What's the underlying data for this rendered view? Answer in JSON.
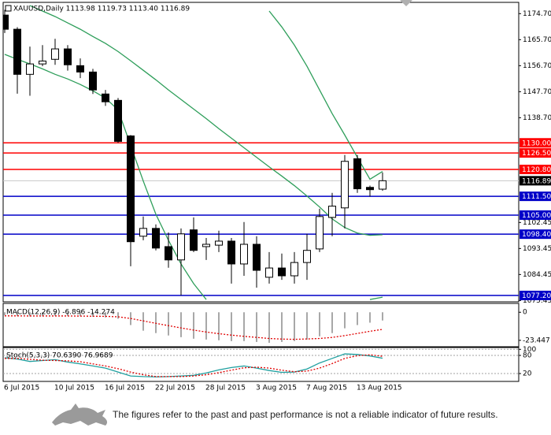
{
  "chart_data": [
    {
      "type": "candlestick",
      "title": "XAUUSD,Daily  1113.98 1119.73 1113.40 1116.89",
      "categories": [
        "6 Jul 2015",
        null,
        null,
        null,
        "10 Jul 2015",
        null,
        null,
        null,
        "16 Jul 2015",
        null,
        null,
        null,
        "22 Jul 2015",
        null,
        null,
        null,
        "28 Jul 2015",
        null,
        null,
        null,
        "3 Aug 2015",
        null,
        null,
        null,
        "7 Aug 2015",
        null,
        null,
        null,
        "13 Aug 2015",
        null,
        null
      ],
      "open": [
        1174.2,
        1169.3,
        1153.7,
        1157.3,
        1158.9,
        1162.5,
        1156.7,
        1154.5,
        1146.9,
        1144.7,
        1132.4,
        1097.7,
        1100.4,
        1094.1,
        1089.5,
        1099.9,
        1094.1,
        1094.6,
        1096.0,
        1088.1,
        1094.9,
        1083.5,
        1086.7,
        1084.0,
        1088.6,
        1093.3,
        1104.2,
        1107.5,
        1124.5,
        1114.6,
        1113.98
      ],
      "high": [
        1176.0,
        1170.0,
        1163.3,
        1163.8,
        1166.0,
        1163.8,
        1159.2,
        1155.6,
        1148.3,
        1145.5,
        1132.7,
        1104.5,
        1101.8,
        1099.0,
        1100.4,
        1104.2,
        1097.1,
        1099.6,
        1097.1,
        1102.6,
        1097.7,
        1092.2,
        1091.7,
        1092.2,
        1098.5,
        1107.2,
        1112.7,
        1125.8,
        1125.8,
        1115.2,
        1119.73
      ],
      "low": [
        1168.0,
        1147.0,
        1146.3,
        1156.5,
        1157.0,
        1155.0,
        1152.4,
        1146.9,
        1142.8,
        1130.0,
        1087.3,
        1096.3,
        1092.8,
        1086.8,
        1077.2,
        1092.2,
        1089.5,
        1092.2,
        1081.3,
        1084.0,
        1079.9,
        1081.3,
        1082.6,
        1081.3,
        1082.6,
        1092.2,
        1097.7,
        1100.4,
        1112.7,
        1111.4,
        1113.4
      ],
      "close": [
        1169.3,
        1153.7,
        1157.3,
        1158.3,
        1162.5,
        1157.0,
        1154.5,
        1148.3,
        1144.2,
        1130.5,
        1095.8,
        1100.4,
        1093.6,
        1089.5,
        1098.5,
        1092.8,
        1094.9,
        1096.0,
        1088.1,
        1094.9,
        1085.9,
        1086.7,
        1084.0,
        1088.6,
        1092.8,
        1104.5,
        1108.1,
        1123.6,
        1114.1,
        1113.8,
        1116.89
      ],
      "up_color": "#ffffff",
      "down_color": "#000000",
      "series": [
        {
          "color": "#2e9e5a",
          "values": [
            1160.6,
            1158.9,
            1157.3,
            1155.6,
            1153.7,
            1152.1,
            1150.2,
            1148.0,
            1145.5,
            1141.4,
            1129.1,
            1116.8,
            1105.3,
            1096.3,
            1088.1,
            1081.3,
            1075.8,
            null,
            null,
            null,
            null,
            null,
            null,
            null,
            null,
            null,
            null,
            null,
            null,
            1075.8,
            1076.6
          ]
        },
        {
          "color": "#2e9e5a",
          "values": [
            null,
            null,
            null,
            null,
            null,
            null,
            null,
            null,
            null,
            null,
            null,
            null,
            null,
            null,
            null,
            null,
            null,
            null,
            null,
            null,
            null,
            1175.6,
            1170.1,
            1163.8,
            1156.5,
            1148.3,
            1140.1,
            1132.7,
            1125.0,
            1117.4,
            1120.1
          ]
        },
        {
          "color": "#2e9e5a",
          "values": [
            null,
            null,
            1177.5,
            1175.6,
            1173.7,
            1171.5,
            1169.3,
            1166.8,
            1164.4,
            1161.6,
            1158.4,
            1155.1,
            1151.8,
            1148.3,
            1145.0,
            1141.7,
            1138.4,
            1134.9,
            1131.6,
            1128.3,
            1125.0,
            1121.7,
            1118.5,
            1115.2,
            1111.6,
            1107.8,
            1103.7,
            1100.7,
            1098.8,
            1098.0,
            1098.2
          ]
        }
      ],
      "levels": [
        {
          "value": 1130,
          "label": "1130.00",
          "color": "#ff0000"
        },
        {
          "value": 1126.5,
          "label": "1126.50",
          "color": "#ff0000"
        },
        {
          "value": 1120.8,
          "label": "1120.80",
          "color": "#ff0000"
        },
        {
          "value": 1111.5,
          "label": "1111.50",
          "color": "#0000c8"
        },
        {
          "value": 1105,
          "label": "1105.00",
          "color": "#0000c8"
        },
        {
          "value": 1098.4,
          "label": "1098.40",
          "color": "#0000c8"
        },
        {
          "value": 1077.2,
          "label": "1077.20",
          "color": "#0000c8"
        }
      ],
      "last_price": 1116.89,
      "last_price_color": "#000000",
      "last_price_line_color": "#c8c8c8",
      "ylim": [
        1075.0,
        1178.6
      ],
      "yticks": [
        {
          "value": 1174.7,
          "label": "1174.70"
        },
        {
          "value": 1165.7,
          "label": "1165.70"
        },
        {
          "value": 1156.7,
          "label": "1156.70"
        },
        {
          "value": 1147.7,
          "label": "1147.70"
        },
        {
          "value": 1138.7,
          "label": "1138.70"
        },
        1102.45,
        1093.45,
        1084.45,
        1075.45
      ]
    },
    {
      "type": "macd",
      "title": "MACD(12,26,9) -6.896 -14.274",
      "series": [
        {
          "style": "histogram",
          "color": "#a8a8a8",
          "values": [
            -2.5,
            -3.2,
            -3.5,
            -3.4,
            -3.0,
            -3.1,
            -3.3,
            -3.8,
            -4.3,
            -5.4,
            -10.7,
            -15.4,
            -17.4,
            -19.4,
            -20.8,
            -22.1,
            -22.8,
            -23.4,
            -24.1,
            -24.1,
            -24.8,
            -25.5,
            -24.8,
            -24.1,
            -22.8,
            -20.1,
            -17.4,
            -13.4,
            -10.7,
            -8.7,
            -6.896
          ]
        },
        {
          "style": "dotted",
          "color": "#e00000",
          "values": [
            -3.0,
            -3.0,
            -3.1,
            -3.1,
            -3.1,
            -3.1,
            -3.2,
            -3.3,
            -3.4,
            -3.8,
            -5.2,
            -7.2,
            -9.2,
            -11.2,
            -13.1,
            -14.9,
            -16.5,
            -17.9,
            -19.1,
            -20.1,
            -21.0,
            -21.9,
            -22.4,
            -22.6,
            -22.3,
            -21.9,
            -21.0,
            -19.5,
            -17.7,
            -15.9,
            -14.274
          ]
        }
      ],
      "ylim": [
        -28.8,
        7.4
      ],
      "yticks": [
        0,
        -23.447
      ]
    },
    {
      "type": "stochastic",
      "title": "Stoch(5,3,3) 70.6390 76.9689",
      "series": [
        {
          "style": "solid",
          "color": "#20a0a0",
          "values": [
            72,
            68,
            60,
            63,
            66,
            58,
            52,
            45,
            38,
            25,
            12,
            10,
            9,
            10,
            12,
            14,
            22,
            32,
            40,
            45,
            38,
            30,
            24,
            25,
            35,
            55,
            70,
            85,
            83,
            78,
            70.639
          ]
        },
        {
          "style": "dotted",
          "color": "#e00000",
          "values": [
            70,
            70,
            67,
            64,
            63,
            62,
            59,
            52,
            45,
            36,
            25,
            16,
            10,
            10,
            10,
            12,
            16,
            23,
            31,
            39,
            41,
            38,
            31,
            26,
            28,
            38,
            53,
            70,
            79,
            82,
            76.9689
          ]
        }
      ],
      "ylim": [
        -6,
        106
      ],
      "yticks": [
        100,
        80,
        20
      ],
      "grid": true
    }
  ],
  "footer": {
    "disclaimer": "The figures refer to the past and past performance is not a reliable indicator of future results."
  }
}
